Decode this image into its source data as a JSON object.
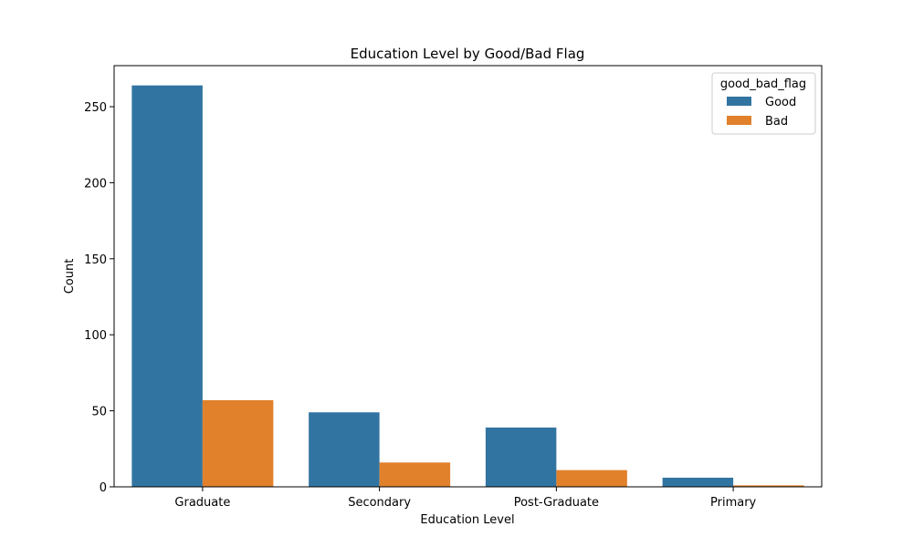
{
  "chart_data": {
    "type": "bar",
    "title": "Education Level by Good/Bad Flag",
    "xlabel": "Education Level",
    "ylabel": "Count",
    "categories": [
      "Graduate",
      "Secondary",
      "Post-Graduate",
      "Primary"
    ],
    "series": [
      {
        "name": "Good",
        "color": "#3274a1",
        "values": [
          264,
          49,
          39,
          6
        ]
      },
      {
        "name": "Bad",
        "color": "#e1812c",
        "values": [
          57,
          16,
          11,
          1
        ]
      }
    ],
    "ylim": [
      0,
      277
    ],
    "yticks": [
      0,
      50,
      100,
      150,
      200,
      250
    ],
    "legend": {
      "title": "good_bad_flag",
      "placement": "top-right"
    },
    "grid": false
  }
}
